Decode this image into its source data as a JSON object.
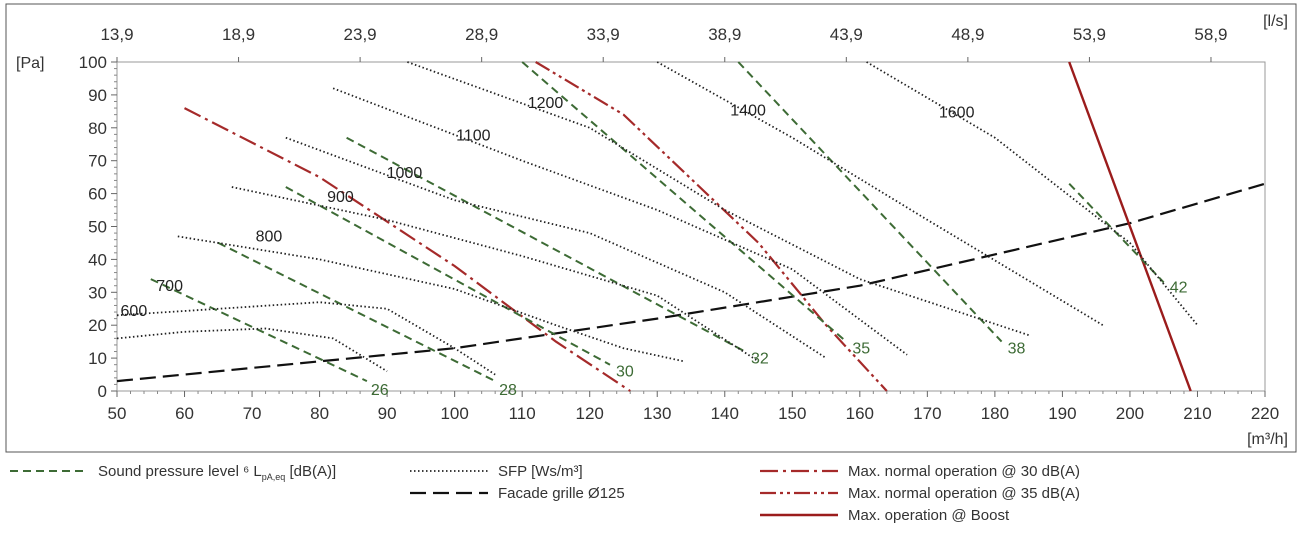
{
  "chart_data": {
    "type": "line",
    "x_axis": {
      "label": "[m³/h]",
      "range": [
        50,
        220
      ],
      "ticks": [
        50,
        60,
        70,
        80,
        90,
        100,
        110,
        120,
        130,
        140,
        150,
        160,
        170,
        180,
        190,
        200,
        210,
        220
      ]
    },
    "x2_axis": {
      "label": "[l/s]",
      "ticks": [
        "13,9",
        "18,9",
        "23,9",
        "28,9",
        "33,9",
        "38,9",
        "43,9",
        "48,9",
        "53,9",
        "58,9"
      ]
    },
    "y_axis": {
      "label": "[Pa]",
      "range": [
        0,
        100
      ],
      "ticks": [
        0,
        10,
        20,
        30,
        40,
        50,
        60,
        70,
        80,
        90,
        100
      ]
    },
    "grid": "major and minor ticks, no gridlines",
    "legend_position": "bottom",
    "legend": [
      {
        "key": "spl",
        "label": "Sound pressure level ⁶ L",
        "sub": "pA,eq",
        "suffix": " [dB(A)]",
        "color": "#3d6b35",
        "style": "dashed"
      },
      {
        "key": "sfp",
        "label": "SFP [Ws/m³]",
        "color": "#222222",
        "style": "dotted"
      },
      {
        "key": "grille",
        "label": "Facade grille Ø125",
        "color": "#111111",
        "style": "long-dashed"
      },
      {
        "key": "max30",
        "label": "Max. normal operation @ 30 dB(A)",
        "color": "#a52a2a",
        "style": "dash-dot"
      },
      {
        "key": "max35",
        "label": "Max. normal operation @ 35 dB(A)",
        "color": "#a52a2a",
        "style": "dash-dot-dot"
      },
      {
        "key": "boost",
        "label": "Max. operation @ Boost",
        "color": "#9b1c1c",
        "style": "solid"
      }
    ],
    "series": [
      {
        "group": "grille",
        "name": "Facade grille Ø125",
        "points": [
          [
            50,
            3
          ],
          [
            100,
            13
          ],
          [
            130,
            22
          ],
          [
            160,
            32
          ],
          [
            200,
            51
          ],
          [
            220,
            63
          ]
        ]
      },
      {
        "group": "max30",
        "name": "Max. normal operation @ 30 dB(A)",
        "points": [
          [
            60,
            86
          ],
          [
            80,
            65
          ],
          [
            100,
            38
          ],
          [
            115,
            15
          ],
          [
            126,
            0
          ]
        ]
      },
      {
        "group": "max35",
        "name": "Max. normal operation @ 35 dB(A)",
        "points": [
          [
            112,
            100
          ],
          [
            125,
            84
          ],
          [
            145,
            45
          ],
          [
            155,
            20
          ],
          [
            164,
            0
          ]
        ]
      },
      {
        "group": "boost",
        "name": "Max. operation @ Boost",
        "points": [
          [
            191,
            100
          ],
          [
            209,
            0
          ]
        ]
      },
      {
        "group": "spl",
        "name": "26",
        "label": "26",
        "points": [
          [
            55,
            34
          ],
          [
            87,
            3
          ]
        ]
      },
      {
        "group": "spl",
        "name": "28",
        "label": "28",
        "points": [
          [
            65,
            45
          ],
          [
            106,
            3
          ]
        ]
      },
      {
        "group": "spl",
        "name": "30",
        "label": "30",
        "points": [
          [
            75,
            62
          ],
          [
            123,
            8
          ]
        ]
      },
      {
        "group": "spl",
        "name": "32",
        "label": "32",
        "points": [
          [
            84,
            77
          ],
          [
            143,
            12
          ]
        ]
      },
      {
        "group": "spl",
        "name": "35",
        "label": "35",
        "points": [
          [
            110,
            100
          ],
          [
            158,
            15
          ]
        ]
      },
      {
        "group": "spl",
        "name": "38",
        "label": "38",
        "points": [
          [
            142,
            100
          ],
          [
            181,
            15
          ]
        ]
      },
      {
        "group": "spl",
        "name": "42",
        "label": "42",
        "points": [
          [
            191,
            63
          ],
          [
            205,
            33
          ]
        ]
      },
      {
        "group": "sfp",
        "name": "600",
        "label": "600",
        "points": [
          [
            50,
            16
          ],
          [
            60,
            18
          ],
          [
            72,
            19
          ],
          [
            82,
            16
          ],
          [
            90,
            6
          ]
        ]
      },
      {
        "group": "sfp",
        "name": "700",
        "label": "700",
        "points": [
          [
            50,
            23
          ],
          [
            65,
            25
          ],
          [
            80,
            27
          ],
          [
            90,
            25
          ],
          [
            100,
            13
          ],
          [
            106,
            5
          ]
        ]
      },
      {
        "group": "sfp",
        "name": "800",
        "label": "800",
        "points": [
          [
            59,
            47
          ],
          [
            80,
            40
          ],
          [
            100,
            31
          ],
          [
            115,
            20
          ],
          [
            125,
            13
          ],
          [
            134,
            9
          ]
        ]
      },
      {
        "group": "sfp",
        "name": "900",
        "label": "900",
        "points": [
          [
            67,
            62
          ],
          [
            90,
            52
          ],
          [
            110,
            41
          ],
          [
            130,
            29
          ],
          [
            145,
            9
          ]
        ]
      },
      {
        "group": "sfp",
        "name": "1000",
        "label": "1000",
        "points": [
          [
            75,
            77
          ],
          [
            100,
            58
          ],
          [
            120,
            48
          ],
          [
            140,
            30
          ],
          [
            155,
            10
          ]
        ]
      },
      {
        "group": "sfp",
        "name": "1100",
        "label": "1100",
        "points": [
          [
            82,
            92
          ],
          [
            110,
            70
          ],
          [
            130,
            55
          ],
          [
            150,
            37
          ],
          [
            167,
            11
          ]
        ]
      },
      {
        "group": "sfp",
        "name": "1200",
        "label": "1200",
        "points": [
          [
            93,
            100
          ],
          [
            120,
            80
          ],
          [
            140,
            55
          ],
          [
            160,
            34
          ],
          [
            185,
            17
          ]
        ]
      },
      {
        "group": "sfp",
        "name": "1400",
        "label": "1400",
        "points": [
          [
            130,
            100
          ],
          [
            150,
            77
          ],
          [
            170,
            52
          ],
          [
            196,
            20
          ]
        ]
      },
      {
        "group": "sfp",
        "name": "1600",
        "label": "1600",
        "points": [
          [
            161,
            100
          ],
          [
            180,
            77
          ],
          [
            200,
            45
          ],
          [
            210,
            20
          ]
        ]
      }
    ]
  }
}
